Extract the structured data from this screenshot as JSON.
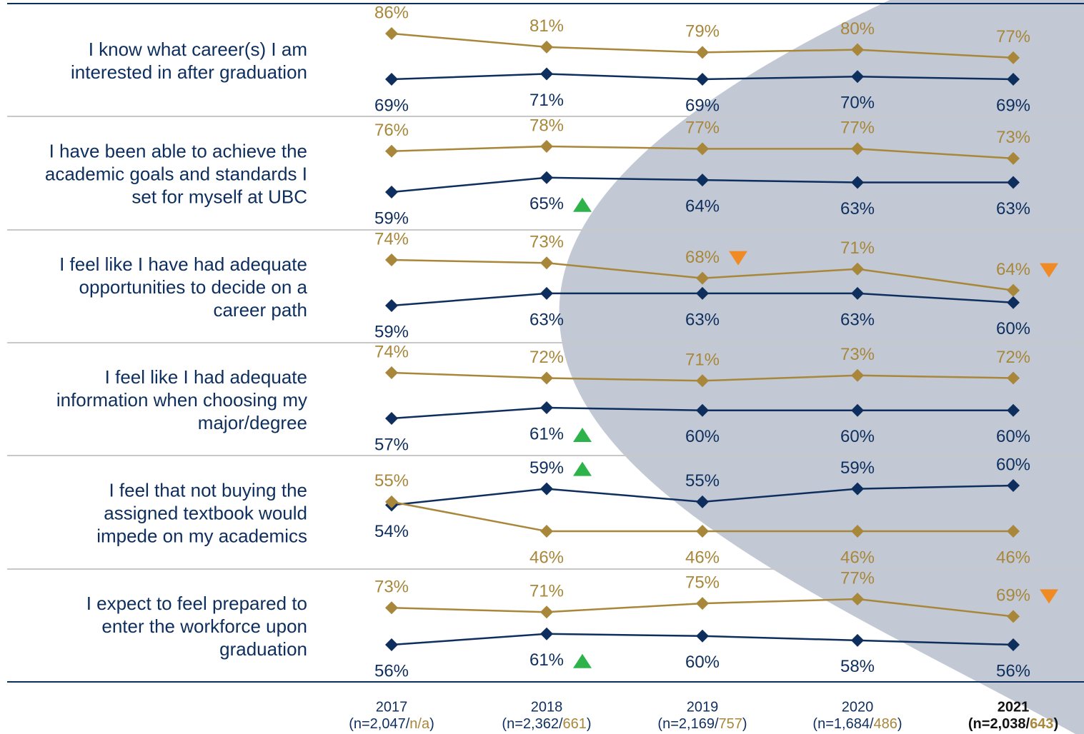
{
  "chart_data": {
    "type": "line",
    "categories": [
      "2017",
      "2018",
      "2019",
      "2020",
      "2021"
    ],
    "highlight_last": true,
    "n_prefix": "(n=",
    "n_separator": "/",
    "n_suffix": ")",
    "n_totals": [
      "2,047",
      "2,362",
      "2,169",
      "1,684",
      "2,038"
    ],
    "n_subgroups": [
      "n/a",
      "661",
      "757",
      "486",
      "643"
    ],
    "rows": [
      {
        "label": [
          "I know what career(s) I am",
          "interested in after graduation"
        ],
        "series": [
          {
            "color": "#0e2f5e",
            "values": [
              69,
              71,
              69,
              70,
              69
            ],
            "value_labels": [
              "69%",
              "71%",
              "69%",
              "70%",
              "69%"
            ],
            "changes": [
              null,
              null,
              null,
              null,
              null
            ]
          },
          {
            "color": "#a8873b",
            "values": [
              86,
              81,
              79,
              80,
              77
            ],
            "value_labels": [
              "86%",
              "81%",
              "79%",
              "80%",
              "77%"
            ],
            "changes": [
              null,
              null,
              null,
              null,
              null
            ]
          }
        ]
      },
      {
        "label": [
          "I have been able to achieve the",
          "academic goals and standards I",
          "set for myself at UBC"
        ],
        "series": [
          {
            "color": "#0e2f5e",
            "values": [
              59,
              65,
              64,
              63,
              63
            ],
            "value_labels": [
              "59%",
              "65%",
              "64%",
              "63%",
              "63%"
            ],
            "changes": [
              null,
              "up",
              null,
              null,
              null
            ]
          },
          {
            "color": "#a8873b",
            "values": [
              76,
              78,
              77,
              77,
              73
            ],
            "value_labels": [
              "76%",
              "78%",
              "77%",
              "77%",
              "73%"
            ],
            "changes": [
              null,
              null,
              null,
              null,
              null
            ]
          }
        ]
      },
      {
        "label": [
          "I feel like I have had adequate",
          "opportunities to decide on a",
          "career path"
        ],
        "series": [
          {
            "color": "#0e2f5e",
            "values": [
              59,
              63,
              63,
              63,
              60
            ],
            "value_labels": [
              "59%",
              "63%",
              "63%",
              "63%",
              "60%"
            ],
            "changes": [
              null,
              null,
              null,
              null,
              null
            ]
          },
          {
            "color": "#a8873b",
            "values": [
              74,
              73,
              68,
              71,
              64
            ],
            "value_labels": [
              "74%",
              "73%",
              "68%",
              "71%",
              "64%"
            ],
            "changes": [
              null,
              null,
              "down",
              null,
              "down"
            ]
          }
        ]
      },
      {
        "label": [
          "I feel like I had adequate",
          "information when choosing my",
          "major/degree"
        ],
        "series": [
          {
            "color": "#0e2f5e",
            "values": [
              57,
              61,
              60,
              60,
              60
            ],
            "value_labels": [
              "57%",
              "61%",
              "60%",
              "60%",
              "60%"
            ],
            "changes": [
              null,
              "up",
              null,
              null,
              null
            ]
          },
          {
            "color": "#a8873b",
            "values": [
              74,
              72,
              71,
              73,
              72
            ],
            "value_labels": [
              "74%",
              "72%",
              "71%",
              "73%",
              "72%"
            ],
            "changes": [
              null,
              null,
              null,
              null,
              null
            ]
          }
        ]
      },
      {
        "label": [
          "I feel that not buying the",
          "assigned textbook would",
          "impede on my academics"
        ],
        "series": [
          {
            "color": "#0e2f5e",
            "values": [
              54,
              59,
              55,
              59,
              60
            ],
            "value_labels": [
              "54%",
              "59%",
              "55%",
              "59%",
              "60%"
            ],
            "changes": [
              null,
              "up",
              null,
              null,
              null
            ]
          },
          {
            "color": "#a8873b",
            "values": [
              55,
              46,
              46,
              46,
              46
            ],
            "value_labels": [
              "55%",
              "46%",
              "46%",
              "46%",
              "46%"
            ],
            "changes": [
              null,
              null,
              null,
              null,
              null
            ]
          }
        ]
      },
      {
        "label": [
          "I expect to feel prepared to",
          "enter the workforce upon",
          "graduation"
        ],
        "series": [
          {
            "color": "#0e2f5e",
            "values": [
              56,
              61,
              60,
              58,
              56
            ],
            "value_labels": [
              "56%",
              "61%",
              "60%",
              "58%",
              "56%"
            ],
            "changes": [
              null,
              "up",
              null,
              null,
              null
            ]
          },
          {
            "color": "#a8873b",
            "values": [
              73,
              71,
              75,
              77,
              69
            ],
            "value_labels": [
              "73%",
              "71%",
              "75%",
              "77%",
              "69%"
            ],
            "changes": [
              null,
              null,
              null,
              null,
              "down"
            ]
          }
        ]
      }
    ]
  }
}
